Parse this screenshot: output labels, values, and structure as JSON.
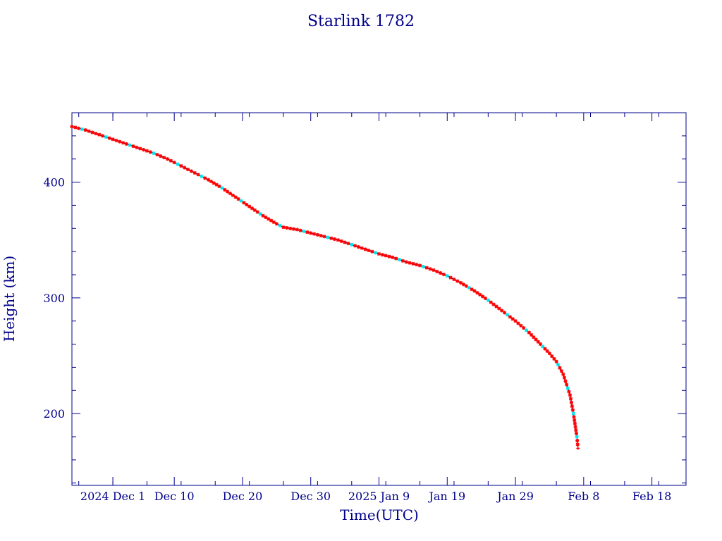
{
  "chart_data": {
    "type": "scatter",
    "title": "Starlink 1782",
    "xlabel": "Time(UTC)",
    "ylabel": "Height (km)",
    "x_range": [
      "2024-11-25",
      "2025-02-23"
    ],
    "ylim": [
      138,
      460
    ],
    "grid": false,
    "x_ticks": [
      {
        "date": "2024-12-01",
        "label": "2024 Dec  1"
      },
      {
        "date": "2024-12-10",
        "label": "Dec 10"
      },
      {
        "date": "2024-12-20",
        "label": "Dec 20"
      },
      {
        "date": "2024-12-30",
        "label": "Dec 30"
      },
      {
        "date": "2025-01-09",
        "label": "2025 Jan  9"
      },
      {
        "date": "2025-01-19",
        "label": "Jan 19"
      },
      {
        "date": "2025-01-29",
        "label": "Jan 29"
      },
      {
        "date": "2025-02-08",
        "label": "Feb  8"
      },
      {
        "date": "2025-02-18",
        "label": "Feb 18"
      }
    ],
    "y_ticks": [
      200,
      300,
      400
    ],
    "colors": {
      "line": "#00008b",
      "marker_primary": "#ff0000",
      "marker_secondary": "#00e5ee",
      "axes": "#00008b"
    },
    "series": [
      {
        "color": "#00008b",
        "points": [
          [
            "2024-11-25",
            448
          ],
          [
            "2024-11-27",
            445
          ],
          [
            "2024-11-29",
            441
          ],
          [
            "2024-12-01",
            437
          ],
          [
            "2024-12-03",
            433
          ],
          [
            "2024-12-05",
            429
          ],
          [
            "2024-12-07",
            425
          ],
          [
            "2024-12-09",
            420
          ],
          [
            "2024-12-11",
            414
          ],
          [
            "2024-12-13",
            408
          ],
          [
            "2024-12-15",
            402
          ],
          [
            "2024-12-17",
            395
          ],
          [
            "2024-12-19",
            387
          ],
          [
            "2024-12-21",
            379
          ],
          [
            "2024-12-23",
            371
          ],
          [
            "2024-12-25",
            364
          ],
          [
            "2024-12-26",
            361
          ],
          [
            "2024-12-28",
            359
          ],
          [
            "2024-12-30",
            356
          ],
          [
            "2025-01-01",
            353
          ],
          [
            "2025-01-03",
            350
          ],
          [
            "2025-01-05",
            346
          ],
          [
            "2025-01-07",
            342
          ],
          [
            "2025-01-09",
            338
          ],
          [
            "2025-01-11",
            335
          ],
          [
            "2025-01-13",
            331
          ],
          [
            "2025-01-15",
            328
          ],
          [
            "2025-01-17",
            324
          ],
          [
            "2025-01-19",
            319
          ],
          [
            "2025-01-21",
            313
          ],
          [
            "2025-01-23",
            306
          ],
          [
            "2025-01-25",
            298
          ],
          [
            "2025-01-27",
            289
          ],
          [
            "2025-01-29",
            280
          ],
          [
            "2025-01-31",
            270
          ],
          [
            "2025-02-01",
            264
          ],
          [
            "2025-02-02",
            258
          ],
          [
            "2025-02-03",
            252
          ],
          [
            "2025-02-04",
            245
          ],
          [
            "2025-02-05",
            234
          ],
          [
            "2025-02-06",
            216
          ],
          [
            "2025-02-06T12:00",
            200
          ],
          [
            "2025-02-07",
            180
          ],
          [
            "2025-02-07T04:00",
            170
          ]
        ]
      }
    ]
  }
}
